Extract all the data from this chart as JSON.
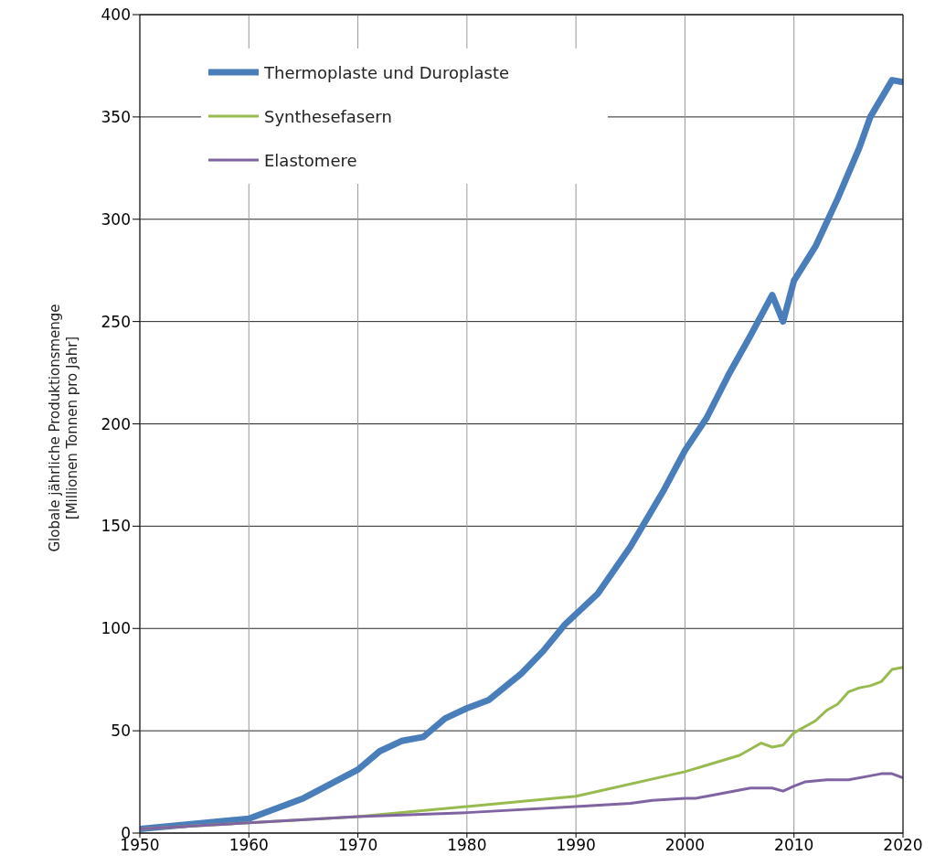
{
  "chart_data": {
    "type": "line",
    "ylabel": "Globale jährliche Produktionsmenge\n[Millionen Tonnen pro Jahr]",
    "xlim": [
      1950,
      2020
    ],
    "xticks": [
      1950,
      1960,
      1970,
      1980,
      1990,
      2000,
      2010,
      2020
    ],
    "ylim": [
      0,
      400
    ],
    "yticks": [
      0,
      50,
      100,
      150,
      200,
      250,
      300,
      350,
      400
    ],
    "grid": true,
    "legend": "top left",
    "marker": "none",
    "line_style": "solid",
    "series": [
      {
        "name": "Thermoplaste und Duroplaste",
        "color": "#4a7ebb",
        "x": [
          1950,
          1960,
          1965,
          1970,
          1972,
          1974,
          1976,
          1978,
          1980,
          1982,
          1985,
          1987,
          1989,
          1992,
          1995,
          1998,
          2000,
          2002,
          2004,
          2006,
          2008,
          2009,
          2010,
          2012,
          2014,
          2016,
          2017,
          2019,
          2020
        ],
        "values": [
          2,
          7,
          17,
          31,
          40,
          45,
          47,
          56,
          61,
          65,
          78,
          89,
          102,
          117,
          140,
          167,
          187,
          203,
          224,
          243,
          263,
          250,
          270,
          287,
          310,
          335,
          350,
          368,
          367
        ]
      },
      {
        "name": "Synthesefasern",
        "color": "#98bb50",
        "x": [
          1950,
          1960,
          1970,
          1980,
          1990,
          2000,
          2005,
          2007,
          2008,
          2009,
          2010,
          2012,
          2013,
          2014,
          2015,
          2016,
          2017,
          2018,
          2019,
          2020
        ],
        "values": [
          2,
          5,
          8,
          13,
          18,
          30,
          38,
          44,
          42,
          43,
          49,
          55,
          60,
          63,
          69,
          71,
          72,
          74,
          80,
          81
        ]
      },
      {
        "name": "Elastomere",
        "color": "#8064a2",
        "x": [
          1950,
          1960,
          1970,
          1980,
          1990,
          1995,
          1997,
          2000,
          2001,
          2002,
          2004,
          2005,
          2006,
          2008,
          2009,
          2010,
          2011,
          2013,
          2015,
          2017,
          2018,
          2019,
          2020
        ],
        "values": [
          2,
          5,
          8,
          10,
          13,
          14.5,
          16,
          17,
          17,
          18,
          20,
          21,
          22,
          22,
          20.5,
          23,
          25,
          26,
          26,
          28,
          29,
          29,
          27
        ]
      }
    ]
  }
}
